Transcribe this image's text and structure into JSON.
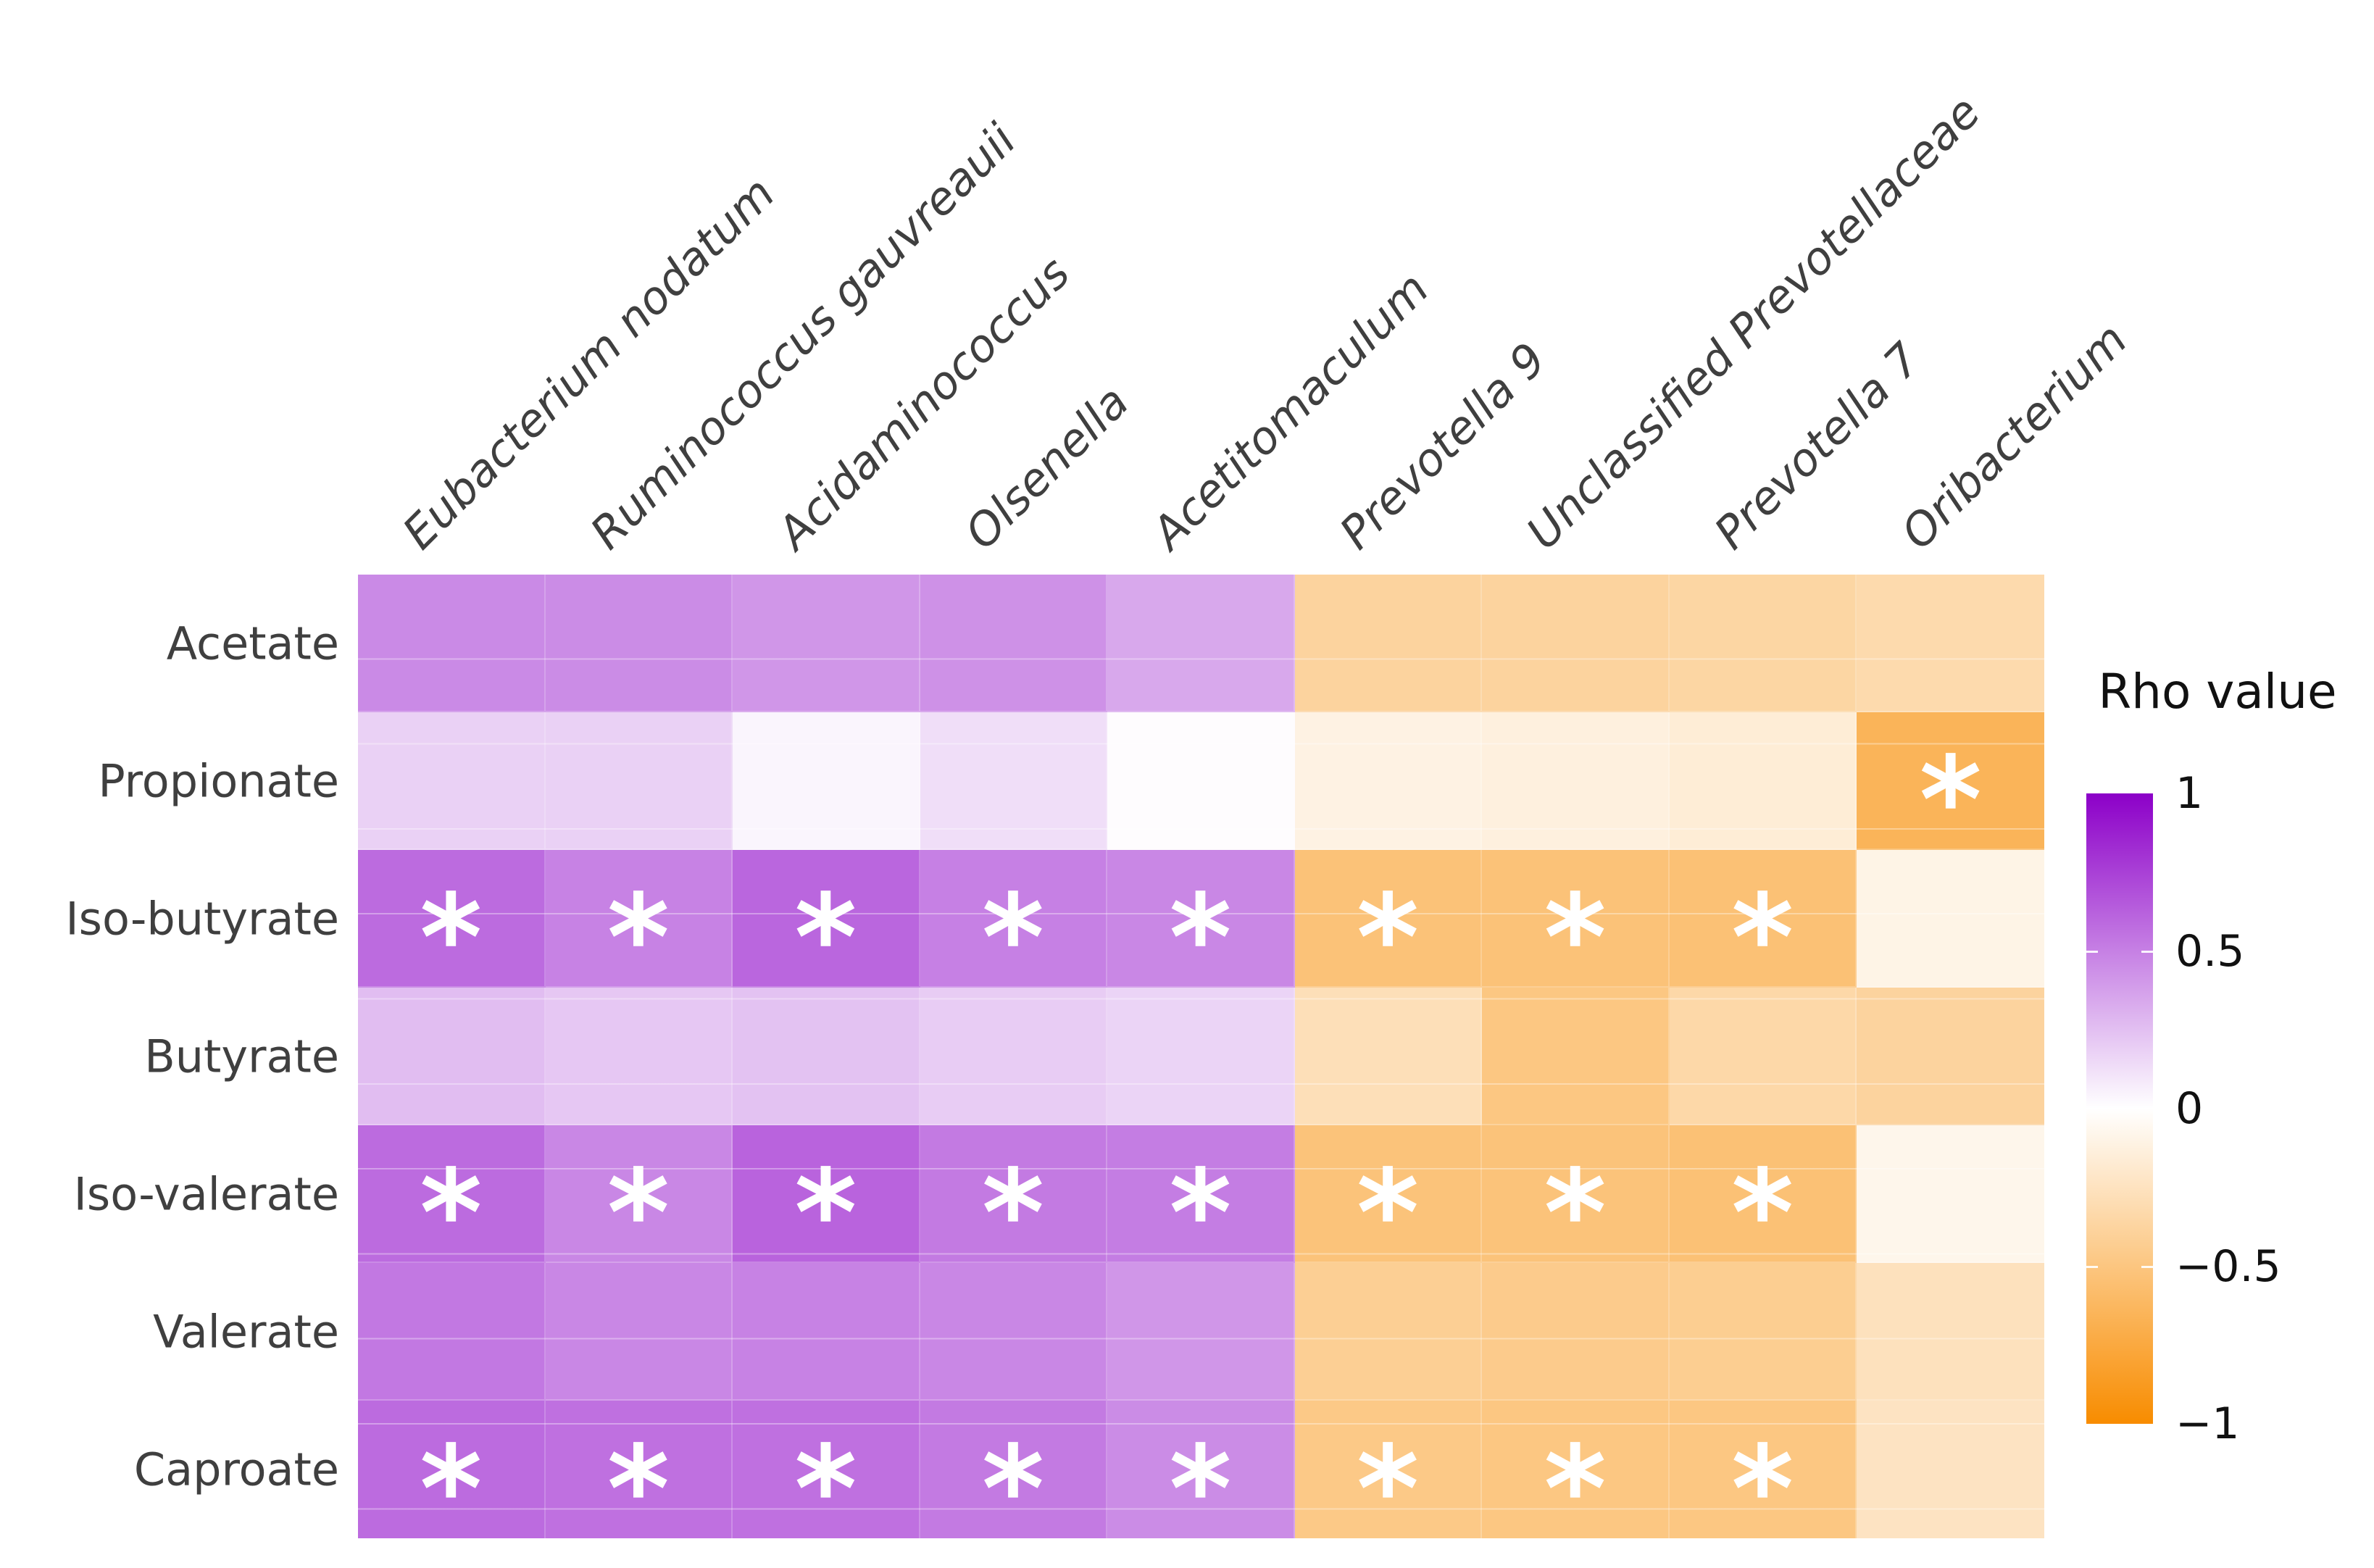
{
  "figure": {
    "background": "#ffffff",
    "significance_marker": "*"
  },
  "chart_data": {
    "type": "heatmap",
    "title": "",
    "rows": [
      "Acetate",
      "Propionate",
      "Iso-butyrate",
      "Butyrate",
      "Iso-valerate",
      "Valerate",
      "Caproate"
    ],
    "columns": [
      "Eubacterium nodatum",
      "Ruminococcus gauvreauii",
      "Acidaminococcus",
      "Olsenella",
      "Acetitomaculum",
      "Prevotella 9",
      "Unclassified Prevotellaceae",
      "Prevotella 7",
      "Oribacterium"
    ],
    "values": [
      [
        0.46,
        0.45,
        0.41,
        0.43,
        0.34,
        -0.38,
        -0.38,
        -0.36,
        -0.32
      ],
      [
        0.18,
        0.18,
        0.04,
        0.13,
        0.01,
        -0.11,
        -0.13,
        -0.16,
        -0.65
      ],
      [
        0.58,
        0.49,
        0.6,
        0.5,
        0.47,
        -0.53,
        -0.53,
        -0.54,
        -0.1
      ],
      [
        0.26,
        0.22,
        0.24,
        0.2,
        0.17,
        -0.28,
        -0.49,
        -0.34,
        -0.38
      ],
      [
        0.58,
        0.47,
        0.61,
        0.52,
        0.51,
        -0.52,
        -0.52,
        -0.54,
        -0.08
      ],
      [
        0.53,
        0.47,
        0.49,
        0.47,
        0.41,
        -0.42,
        -0.45,
        -0.43,
        -0.26
      ],
      [
        0.58,
        0.56,
        0.56,
        0.52,
        0.45,
        -0.47,
        -0.49,
        -0.49,
        -0.24
      ]
    ],
    "significant": [
      [
        0,
        0,
        0,
        0,
        0,
        0,
        0,
        0,
        0
      ],
      [
        0,
        0,
        0,
        0,
        0,
        0,
        0,
        0,
        1
      ],
      [
        1,
        1,
        1,
        1,
        1,
        1,
        1,
        1,
        0
      ],
      [
        0,
        0,
        0,
        0,
        0,
        0,
        0,
        0,
        0
      ],
      [
        1,
        1,
        1,
        1,
        1,
        1,
        1,
        1,
        0
      ],
      [
        0,
        0,
        0,
        0,
        0,
        0,
        0,
        0,
        0
      ],
      [
        1,
        1,
        1,
        1,
        1,
        1,
        1,
        1,
        0
      ]
    ],
    "legend": {
      "title": "Rho value",
      "tick_labels": [
        "1",
        "0.5",
        "0",
        "−0.5",
        "−1"
      ],
      "tick_values": [
        1,
        0.5,
        0,
        -0.5,
        -1
      ],
      "range": [
        -1,
        1
      ],
      "position": "right"
    },
    "colors": {
      "positive_end": "#8c00c8",
      "zero": "#ffffff",
      "negative_end": "#f88c00",
      "label_color": "#3f3f3f",
      "tick_color": "#111111"
    },
    "x_tick_rotation": 45,
    "grid": true
  }
}
